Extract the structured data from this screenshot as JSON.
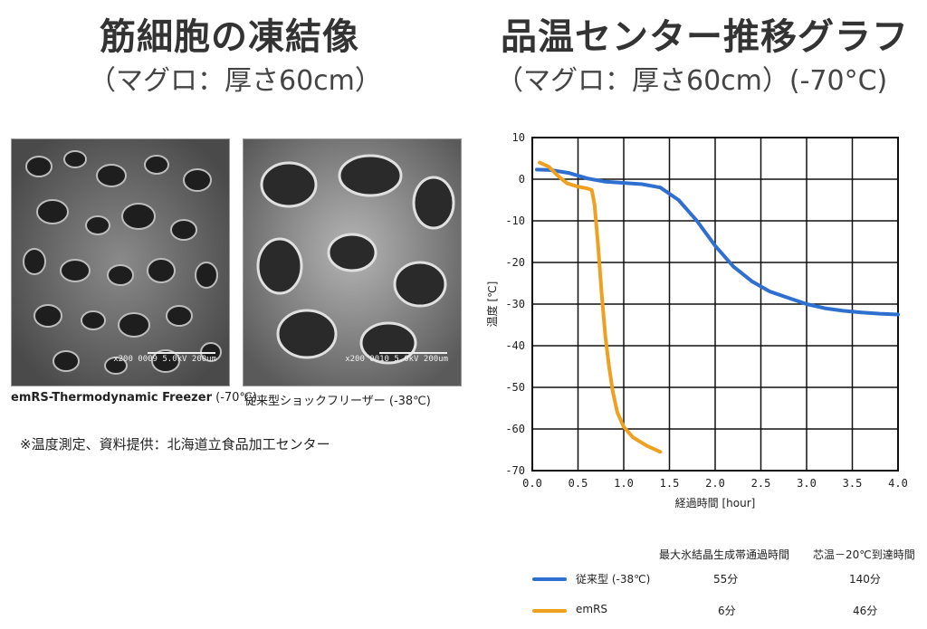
{
  "left": {
    "title": "筋細胞の凍結像",
    "subtitle": "（マグロ：厚さ60cm）",
    "photos": [
      {
        "caption_bold": "emRS-Thermodynamic Freezer",
        "caption_rest": " (-70℃)",
        "scale_text": "x200  0009 5.0kV 200um"
      },
      {
        "caption_bold": "",
        "caption_rest": "従来型ショックフリーザー (-38℃)",
        "scale_text": "x200  0010 5.0kV 200um"
      }
    ],
    "note": "※温度測定、資料提供：北海道立食品加工センター"
  },
  "right": {
    "title": "品温センター推移グラフ",
    "subtitle": "（マグロ：厚さ60cm）(-70°C)"
  },
  "chart_data": {
    "type": "line",
    "title": "品温センター推移グラフ",
    "xlabel": "経過時間 [hour]",
    "ylabel": "温度 [℃]",
    "xlim": [
      0.0,
      4.0
    ],
    "ylim": [
      -70,
      10
    ],
    "xticks": [
      "0.0",
      "0.5",
      "1.0",
      "1.5",
      "2.0",
      "2.5",
      "3.0",
      "3.5",
      "4.0"
    ],
    "yticks": [
      "10",
      "0",
      "-10",
      "-20",
      "-30",
      "-40",
      "-50",
      "-60",
      "-70"
    ],
    "grid": true,
    "series": [
      {
        "name": "従来型 (-38℃)",
        "color": "#2f6fcf",
        "points": [
          [
            0.05,
            2.3
          ],
          [
            0.2,
            2.2
          ],
          [
            0.4,
            1.5
          ],
          [
            0.6,
            0.2
          ],
          [
            0.8,
            -0.6
          ],
          [
            1.0,
            -0.9
          ],
          [
            1.2,
            -1.2
          ],
          [
            1.4,
            -2.0
          ],
          [
            1.6,
            -5.0
          ],
          [
            1.8,
            -10.0
          ],
          [
            2.0,
            -16.0
          ],
          [
            2.2,
            -21.0
          ],
          [
            2.4,
            -24.5
          ],
          [
            2.6,
            -27.0
          ],
          [
            2.8,
            -28.5
          ],
          [
            3.0,
            -30.0
          ],
          [
            3.2,
            -31.0
          ],
          [
            3.4,
            -31.6
          ],
          [
            3.6,
            -32.0
          ],
          [
            3.8,
            -32.3
          ],
          [
            4.0,
            -32.5
          ]
        ]
      },
      {
        "name": "emRS",
        "color": "#f0a020",
        "points": [
          [
            0.08,
            4.0
          ],
          [
            0.18,
            3.0
          ],
          [
            0.28,
            0.8
          ],
          [
            0.38,
            -1.0
          ],
          [
            0.5,
            -1.8
          ],
          [
            0.6,
            -2.2
          ],
          [
            0.65,
            -2.6
          ],
          [
            0.68,
            -6.0
          ],
          [
            0.72,
            -16.0
          ],
          [
            0.76,
            -28.0
          ],
          [
            0.8,
            -38.0
          ],
          [
            0.84,
            -45.0
          ],
          [
            0.88,
            -51.0
          ],
          [
            0.93,
            -56.0
          ],
          [
            1.0,
            -59.5
          ],
          [
            1.1,
            -62.0
          ],
          [
            1.25,
            -64.0
          ],
          [
            1.4,
            -65.5
          ]
        ]
      }
    ]
  },
  "table": {
    "headers": [
      "最大氷結晶生成帯通過時間",
      "芯温－20℃到達時間"
    ],
    "rows": [
      {
        "label": "従来型 (-38℃)",
        "color": "#2f6fcf",
        "values": [
          "55分",
          "140分"
        ]
      },
      {
        "label": "emRS",
        "color": "#f0a020",
        "values": [
          "6分",
          "46分"
        ]
      }
    ]
  }
}
